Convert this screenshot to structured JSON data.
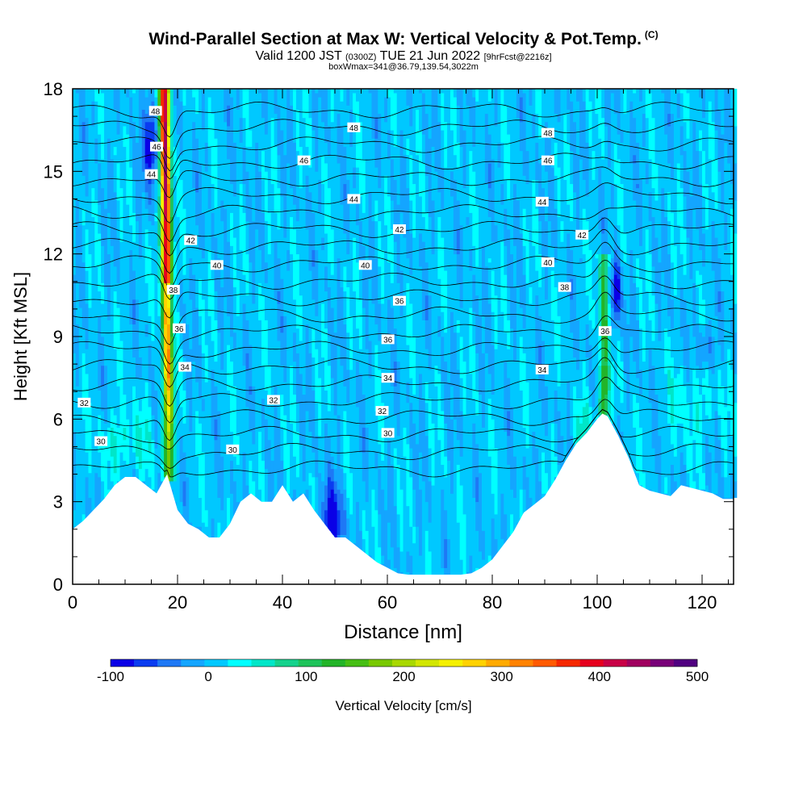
{
  "title": {
    "main": "Wind-Parallel Section at Max W: Vertical Velocity & Pot.Temp.",
    "copyright": "(C)",
    "valid_a": "Valid 1200 JST",
    "valid_z": "(0300Z)",
    "valid_b": "TUE 21 Jun 2022",
    "fcst": "[9hrFcst@2216z]",
    "box": "boxWmax=341@36.79,139.54,3022m"
  },
  "chart_data": {
    "type": "heatmap",
    "xlabel": "Distance [nm]",
    "ylabel": "Height [Kft MSL]",
    "xlim": [
      0,
      126
    ],
    "ylim": [
      0,
      18
    ],
    "x_ticks": [
      0,
      20,
      40,
      60,
      80,
      100,
      120
    ],
    "y_ticks": [
      0,
      3,
      6,
      9,
      12,
      15,
      18
    ],
    "colorbar": {
      "label": "Vertical Velocity [cm/s]",
      "min": -100,
      "max": 500,
      "tick_values": [
        -100,
        0,
        100,
        200,
        300,
        400,
        500
      ],
      "colors": [
        "#0a00e6",
        "#0a3cf0",
        "#1e78f5",
        "#14a5ff",
        "#00c8ff",
        "#00ffff",
        "#00e6c8",
        "#14d28c",
        "#1ec35a",
        "#23b428",
        "#46be14",
        "#78c800",
        "#a8d800",
        "#d2e600",
        "#f5f000",
        "#ffd200",
        "#ffaa00",
        "#ff8200",
        "#ff5a00",
        "#f52800",
        "#e6001e",
        "#c80046",
        "#a0005f",
        "#780078",
        "#500080"
      ]
    },
    "velocity_max_cms": 341,
    "updrafts": [
      {
        "x": 18,
        "z_bottom": 4,
        "z_top": 18,
        "peak_cm_s": 420
      },
      {
        "x": 101.5,
        "z_bottom": 5.7,
        "z_top": 11.5,
        "peak_cm_s": 160
      }
    ],
    "downdrafts": [
      {
        "x": 15,
        "z": 16,
        "min_cm_s": -60
      },
      {
        "x": 103.5,
        "z": 10.5,
        "min_cm_s": -80
      },
      {
        "x": 49,
        "z": 2.5,
        "min_cm_s": -50
      }
    ],
    "terrain": {
      "x": [
        0,
        2,
        4,
        6,
        8,
        10,
        12,
        14,
        16,
        18,
        20,
        22,
        24,
        26,
        28,
        30,
        32,
        34,
        36,
        38,
        40,
        42,
        44,
        46,
        48,
        50,
        52,
        54,
        56,
        58,
        60,
        62,
        64,
        66,
        68,
        70,
        72,
        74,
        76,
        78,
        80,
        82,
        84,
        86,
        88,
        90,
        92,
        94,
        96,
        98,
        100,
        101,
        102,
        104,
        106,
        108,
        110,
        112,
        114,
        116,
        118,
        120,
        122,
        124,
        126
      ],
      "z": [
        2.0,
        2.3,
        2.7,
        3.1,
        3.6,
        3.9,
        3.9,
        3.6,
        3.3,
        4.0,
        2.7,
        2.2,
        2.0,
        1.7,
        1.7,
        2.2,
        3.0,
        3.3,
        3.0,
        3.0,
        3.6,
        3.0,
        3.3,
        2.7,
        2.2,
        1.7,
        1.7,
        1.4,
        1.1,
        0.8,
        0.6,
        0.4,
        0.35,
        0.35,
        0.35,
        0.35,
        0.35,
        0.35,
        0.4,
        0.6,
        0.9,
        1.4,
        1.9,
        2.6,
        2.9,
        3.2,
        3.8,
        4.5,
        5.1,
        5.5,
        6.0,
        6.2,
        6.1,
        5.4,
        4.6,
        3.6,
        3.4,
        3.3,
        3.2,
        3.6,
        3.5,
        3.4,
        3.3,
        3.1,
        3.1
      ]
    },
    "theta_contours_c": [
      30,
      32,
      34,
      36,
      38,
      40,
      42,
      44,
      46,
      48
    ],
    "theta_labels": [
      {
        "v": "30",
        "x": 5.4,
        "z": 5.2
      },
      {
        "v": "32",
        "x": 2.2,
        "z": 6.6
      },
      {
        "v": "30",
        "x": 30.5,
        "z": 4.9
      },
      {
        "v": "32",
        "x": 38.3,
        "z": 6.7
      },
      {
        "v": "34",
        "x": 21.4,
        "z": 7.9
      },
      {
        "v": "36",
        "x": 20.3,
        "z": 9.3
      },
      {
        "v": "38",
        "x": 19.2,
        "z": 10.7
      },
      {
        "v": "40",
        "x": 27.5,
        "z": 11.6
      },
      {
        "v": "42",
        "x": 22.5,
        "z": 12.5
      },
      {
        "v": "44",
        "x": 15,
        "z": 14.9
      },
      {
        "v": "46",
        "x": 16,
        "z": 15.9
      },
      {
        "v": "48",
        "x": 15.8,
        "z": 17.2
      },
      {
        "v": "48",
        "x": 53.6,
        "z": 16.6
      },
      {
        "v": "46",
        "x": 44.1,
        "z": 15.4
      },
      {
        "v": "44",
        "x": 53.6,
        "z": 14.0
      },
      {
        "v": "42",
        "x": 62.3,
        "z": 12.9
      },
      {
        "v": "40",
        "x": 55.8,
        "z": 11.6
      },
      {
        "v": "36",
        "x": 62.3,
        "z": 10.3
      },
      {
        "v": "36",
        "x": 60.1,
        "z": 8.9
      },
      {
        "v": "34",
        "x": 60.1,
        "z": 7.5
      },
      {
        "v": "32",
        "x": 59.0,
        "z": 6.3
      },
      {
        "v": "30",
        "x": 60.1,
        "z": 5.5
      },
      {
        "v": "48",
        "x": 90.6,
        "z": 16.4
      },
      {
        "v": "46",
        "x": 90.6,
        "z": 15.4
      },
      {
        "v": "44",
        "x": 89.5,
        "z": 13.9
      },
      {
        "v": "42",
        "x": 97.1,
        "z": 12.7
      },
      {
        "v": "40",
        "x": 90.6,
        "z": 11.7
      },
      {
        "v": "38",
        "x": 93.8,
        "z": 10.8
      },
      {
        "v": "36",
        "x": 101.5,
        "z": 9.2
      },
      {
        "v": "34",
        "x": 89.5,
        "z": 7.8
      }
    ]
  }
}
